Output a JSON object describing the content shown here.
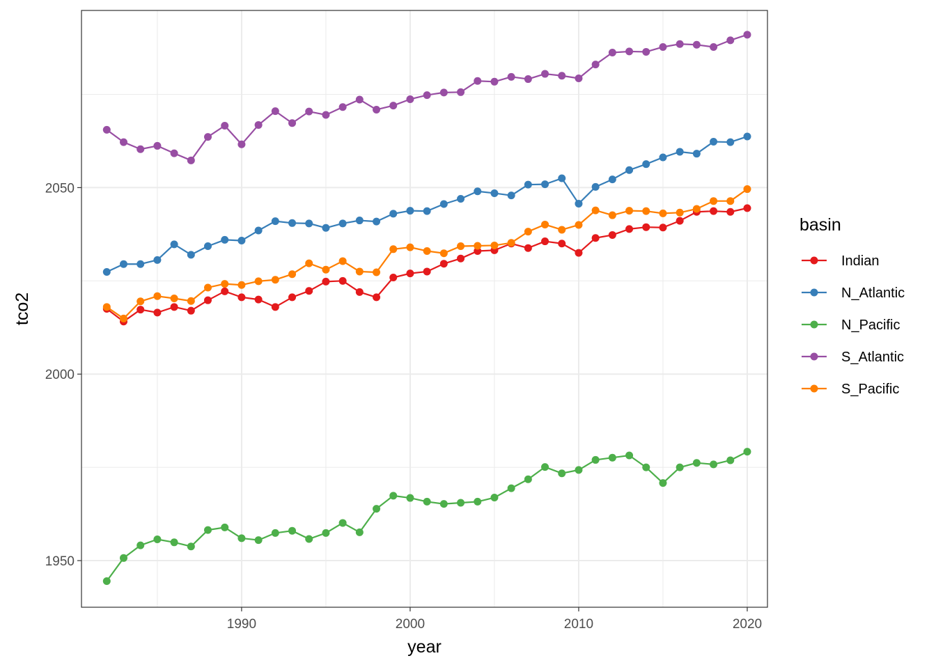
{
  "chart_data": {
    "type": "line",
    "xlabel": "year",
    "ylabel": "tco2",
    "xlim": [
      1980.5,
      2021.2
    ],
    "ylim": [
      1937.5,
      2097.5
    ],
    "x_ticks": [
      1990,
      2000,
      2010,
      2020
    ],
    "y_ticks": [
      1950,
      2000,
      2050
    ],
    "grid": true,
    "legend": {
      "title": "basin",
      "position": "right"
    },
    "x": [
      1982,
      1983,
      1984,
      1985,
      1986,
      1987,
      1988,
      1989,
      1990,
      1991,
      1992,
      1993,
      1994,
      1995,
      1996,
      1997,
      1998,
      1999,
      2000,
      2001,
      2002,
      2003,
      2004,
      2005,
      2006,
      2007,
      2008,
      2009,
      2010,
      2011,
      2012,
      2013,
      2014,
      2015,
      2016,
      2017,
      2018,
      2019,
      2020
    ],
    "series": [
      {
        "name": "Indian",
        "color": "#E41A1C",
        "values": [
          2017.5,
          2014.1,
          2017.3,
          2016.5,
          2018,
          2017,
          2019.8,
          2022.2,
          2020.6,
          2020,
          2018,
          2020.6,
          2022.3,
          2024.8,
          2025,
          2022,
          2020.6,
          2025.9,
          2027,
          2027.5,
          2029.6,
          2031,
          2033,
          2033.2,
          2035,
          2033.8,
          2035.6,
          2035,
          2032.5,
          2036.5,
          2037.3,
          2038.9,
          2039.4,
          2039.3,
          2041.1,
          2043.5,
          2043.7,
          2043.5,
          2044.5
        ]
      },
      {
        "name": "N_Atlantic",
        "color": "#377EB8",
        "values": [
          2027.4,
          2029.5,
          2029.5,
          2030.6,
          2034.8,
          2032,
          2034.3,
          2036,
          2035.8,
          2038.5,
          2041,
          2040.5,
          2040.4,
          2039.2,
          2040.4,
          2041.2,
          2040.9,
          2043,
          2043.8,
          2043.7,
          2045.6,
          2047,
          2049,
          2048.5,
          2047.9,
          2050.8,
          2050.9,
          2052.5,
          2045.7,
          2050.2,
          2052.2,
          2054.7,
          2056.3,
          2058.1,
          2059.6,
          2059.1,
          2062.3,
          2062.2,
          2063.7
        ]
      },
      {
        "name": "N_Pacific",
        "color": "#4DAF4A",
        "values": [
          1944.5,
          1950.7,
          1954.1,
          1955.7,
          1954.9,
          1953.8,
          1958.2,
          1958.9,
          1956,
          1955.5,
          1957.4,
          1958,
          1955.8,
          1957.4,
          1960.1,
          1957.6,
          1963.9,
          1967.4,
          1966.8,
          1965.8,
          1965.2,
          1965.5,
          1965.8,
          1966.9,
          1969.4,
          1971.8,
          1975.1,
          1973.4,
          1974.3,
          1977,
          1977.6,
          1978.2,
          1975,
          1970.8,
          1975,
          1976.2,
          1975.8,
          1976.9,
          1979.2
        ]
      },
      {
        "name": "S_Atlantic",
        "color": "#984EA3",
        "values": [
          2065.5,
          2062.2,
          2060.3,
          2061.2,
          2059.2,
          2057.3,
          2063.6,
          2066.6,
          2061.6,
          2066.8,
          2070.5,
          2067.3,
          2070.4,
          2069.5,
          2071.6,
          2073.6,
          2070.9,
          2072,
          2073.7,
          2074.8,
          2075.5,
          2075.6,
          2078.6,
          2078.4,
          2079.7,
          2079.1,
          2080.5,
          2080,
          2079.3,
          2083,
          2086.2,
          2086.5,
          2086.4,
          2087.7,
          2088.5,
          2088.3,
          2087.7,
          2089.5,
          2091
        ]
      },
      {
        "name": "S_Pacific",
        "color": "#FF7F00",
        "values": [
          2018,
          2014.9,
          2019.5,
          2020.9,
          2020.3,
          2019.6,
          2023.2,
          2024.2,
          2023.9,
          2024.9,
          2025.3,
          2026.8,
          2029.7,
          2028,
          2030.3,
          2027.5,
          2027.3,
          2033.5,
          2034,
          2033,
          2032.4,
          2034.3,
          2034.4,
          2034.5,
          2035.2,
          2038.2,
          2040.1,
          2038.7,
          2040,
          2043.9,
          2042.6,
          2043.8,
          2043.7,
          2043.1,
          2043.3,
          2044.3,
          2046.4,
          2046.4,
          2049.6
        ]
      }
    ]
  }
}
